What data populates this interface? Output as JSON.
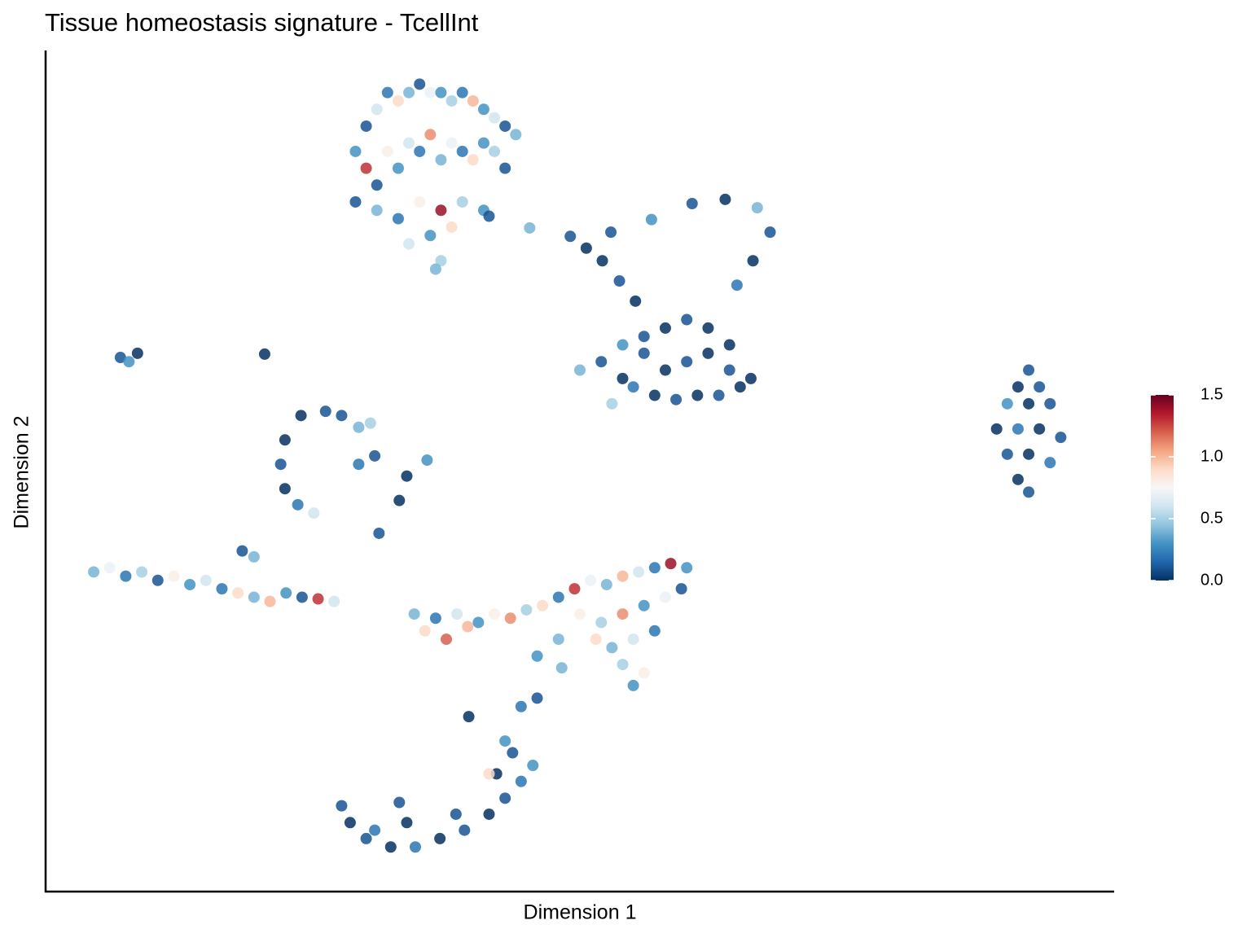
{
  "chart_data": {
    "type": "scatter",
    "title": "Tissue homeostasis signature - TcellInt",
    "x_label": "Dimension 1",
    "y_label": "Dimension 2",
    "xlim": [
      0,
      100
    ],
    "ylim": [
      0,
      100
    ],
    "clim": [
      0,
      1.5
    ],
    "cticks": [
      {
        "value": 0,
        "label": "0.0"
      },
      0.5,
      {
        "value": 1,
        "label": "1.0"
      },
      1.5
    ],
    "colorscale": [
      "#053061",
      "#2166ac",
      "#4393c3",
      "#92c5de",
      "#d1e5f0",
      "#f7f7f7",
      "#fddbc7",
      "#f4a582",
      "#d6604d",
      "#b2182b",
      "#67001f"
    ],
    "x": [
      29,
      30,
      31,
      32,
      33,
      34,
      35,
      36,
      37,
      38,
      39,
      40,
      41,
      42,
      43,
      44,
      30,
      31,
      32,
      33,
      34,
      35,
      36,
      37,
      38,
      39,
      40,
      41,
      42,
      43,
      29,
      31,
      33,
      35,
      37,
      39,
      41,
      34,
      36,
      37,
      36.5,
      38,
      41.5,
      45.3,
      49.1,
      50.6,
      52.9,
      56.7,
      60.5,
      63.6,
      66.6,
      67.8,
      66.2,
      64.7,
      52.1,
      53.7,
      55.2,
      50,
      52,
      54,
      56,
      58,
      60,
      62,
      64,
      66,
      55,
      57,
      59,
      61,
      63,
      65,
      53,
      58,
      60,
      62,
      56,
      54,
      64,
      92,
      91,
      93,
      90,
      92,
      94,
      89,
      91,
      93,
      95,
      90,
      92,
      94,
      91,
      92,
      7,
      7.8,
      8.6,
      20.5,
      26.2,
      23.9,
      22.4,
      22,
      22.4,
      23.6,
      25.1,
      27.7,
      29.3,
      30.4,
      30.8,
      33.8,
      35.7,
      33.1,
      31.2,
      29.3,
      4.5,
      6,
      7.5,
      9,
      10.5,
      12,
      13.5,
      15,
      16.5,
      18,
      19.5,
      21,
      22.5,
      24,
      25.5,
      27,
      18.4,
      19.5,
      34.5,
      35.5,
      36.5,
      37.5,
      38.5,
      39.5,
      40.5,
      42,
      43.5,
      45,
      46.5,
      48,
      49.5,
      51,
      52.5,
      54,
      55.5,
      57,
      58.5,
      60,
      50,
      52,
      54,
      56,
      58,
      59.5,
      51.5,
      53,
      55,
      57,
      54,
      56,
      55,
      48,
      46,
      48.3,
      46,
      44.5,
      39.6,
      43,
      27.7,
      28.5,
      30,
      32.3,
      34.6,
      36.9,
      39.2,
      41.5,
      43,
      44.5,
      45.6,
      43.7,
      42.2,
      38.4,
      33.8,
      30.8,
      33.1,
      41.5
    ],
    "y": [
      88,
      91,
      93,
      95,
      94,
      95,
      96,
      95,
      95,
      94,
      95,
      94,
      93,
      92,
      91,
      90,
      86,
      84,
      88,
      86,
      89,
      88,
      90,
      87,
      89,
      88,
      87,
      89,
      88,
      86,
      82,
      81,
      80,
      82,
      81,
      82,
      81,
      77,
      78,
      75,
      74,
      79,
      80.3,
      78.9,
      77.9,
      76.5,
      78.4,
      79.9,
      81.8,
      82.3,
      81.3,
      78.4,
      75,
      72.1,
      75,
      72.6,
      70.2,
      62,
      63,
      61,
      64,
      62,
      63,
      64,
      62,
      61,
      60,
      59,
      58.5,
      59,
      59,
      60,
      58,
      67,
      68,
      67,
      66,
      65,
      65,
      62,
      60,
      60,
      58,
      58,
      58,
      55,
      55,
      55,
      54,
      52,
      52,
      51,
      49,
      47.5,
      63.5,
      63,
      64,
      63.9,
      57.1,
      56.6,
      53.7,
      50.8,
      47.9,
      46,
      45,
      56.6,
      55.2,
      55.7,
      51.8,
      49.4,
      51.3,
      46.5,
      42.6,
      50.8,
      38,
      38.5,
      37.5,
      38,
      37,
      37.5,
      36.5,
      37,
      36,
      35.5,
      35,
      34.5,
      35.5,
      35,
      34.8,
      34.5,
      40.5,
      39.8,
      33,
      31,
      32.5,
      30,
      33,
      31.5,
      32,
      33,
      32.5,
      33.5,
      34,
      35,
      36,
      37,
      36.5,
      37.5,
      38,
      38.5,
      39,
      38.5,
      33,
      32,
      33,
      34,
      35,
      36,
      30,
      29,
      30,
      31,
      27,
      26,
      24.5,
      30,
      28,
      26.6,
      23,
      22,
      20.8,
      17.9,
      10.2,
      8.2,
      6.3,
      5.3,
      5.3,
      6.3,
      7.3,
      9.2,
      11.1,
      13.1,
      15,
      16.5,
      14,
      9.2,
      8.2,
      7.3,
      10.6,
      14
    ],
    "values": [
      0.3,
      0.1,
      0.6,
      0.2,
      0.9,
      0.4,
      0.1,
      0.7,
      0.3,
      0.5,
      0.2,
      1.0,
      0.3,
      0.6,
      0.1,
      0.4,
      1.3,
      0.1,
      0.8,
      0.3,
      0.6,
      0.2,
      1.1,
      0.4,
      0.7,
      0.2,
      0.9,
      0.3,
      0.5,
      0.1,
      0.1,
      0.4,
      0.2,
      0.8,
      1.4,
      0.5,
      0.3,
      0.6,
      0.3,
      0.5,
      0.4,
      0.9,
      0.1,
      0.4,
      0.1,
      0.0,
      0.1,
      0.3,
      0.1,
      0.0,
      0.4,
      0.1,
      0.0,
      0.2,
      0.0,
      0.1,
      0.0,
      0.4,
      0.1,
      0.0,
      0.1,
      0.0,
      0.1,
      0.0,
      0.1,
      0.0,
      0.2,
      0.0,
      0.1,
      0.0,
      0.1,
      0.0,
      0.5,
      0.0,
      0.1,
      0.0,
      0.1,
      0.3,
      0.0,
      0.1,
      0.0,
      0.1,
      0.3,
      0.0,
      0.1,
      0.0,
      0.2,
      0.0,
      0.1,
      0.1,
      0.0,
      0.2,
      0.0,
      0.1,
      0.1,
      0.3,
      0.0,
      0.0,
      0.1,
      0.0,
      0.0,
      0.1,
      0.0,
      0.2,
      0.6,
      0.1,
      0.4,
      0.5,
      0.1,
      0.0,
      0.3,
      0.0,
      0.1,
      0.2,
      0.4,
      0.7,
      0.2,
      0.5,
      0.1,
      0.8,
      0.3,
      0.6,
      0.2,
      0.9,
      0.4,
      1.0,
      0.3,
      0.1,
      1.3,
      0.6,
      0.1,
      0.4,
      0.4,
      0.9,
      0.2,
      1.2,
      0.6,
      1.0,
      0.3,
      0.8,
      1.1,
      0.5,
      0.9,
      0.2,
      1.3,
      0.7,
      0.4,
      1.0,
      0.6,
      0.2,
      1.4,
      0.3,
      0.8,
      0.5,
      1.1,
      0.3,
      0.7,
      0.1,
      0.9,
      0.4,
      0.6,
      0.2,
      0.5,
      0.8,
      0.3,
      0.4,
      0.3,
      0.4,
      0.1,
      0.2,
      0.0,
      0.3,
      0.1,
      0.0,
      0.1,
      0.0,
      0.2,
      0.0,
      0.1,
      0.0,
      0.1,
      0.2,
      0.3,
      0.1,
      0.0,
      0.1,
      0.0,
      0.2,
      0.1,
      0.9
    ]
  }
}
